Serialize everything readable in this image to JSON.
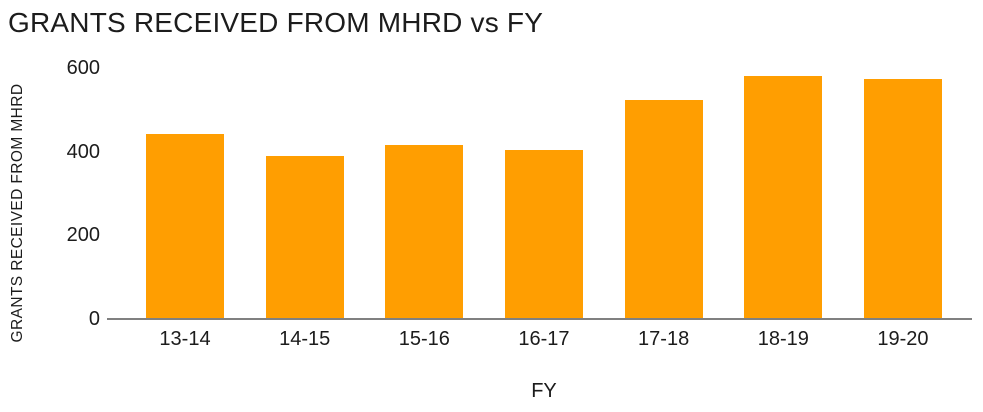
{
  "chart_data": {
    "type": "bar",
    "title": "GRANTS RECEIVED FROM MHRD vs FY",
    "xlabel": "FY",
    "ylabel": "GRANTS RECEIVED FROM MHRD",
    "categories": [
      "13-14",
      "14-15",
      "15-16",
      "16-17",
      "17-18",
      "18-19",
      "19-20"
    ],
    "values": [
      442,
      389,
      416,
      404,
      524,
      580,
      575
    ],
    "yticks": [
      0,
      200,
      400,
      600
    ],
    "ylim": [
      0,
      600
    ],
    "grid": false,
    "legend": false,
    "bar_color": "#FF9E01",
    "axis_color": "#808080",
    "text_color": "#1C1C1C"
  }
}
